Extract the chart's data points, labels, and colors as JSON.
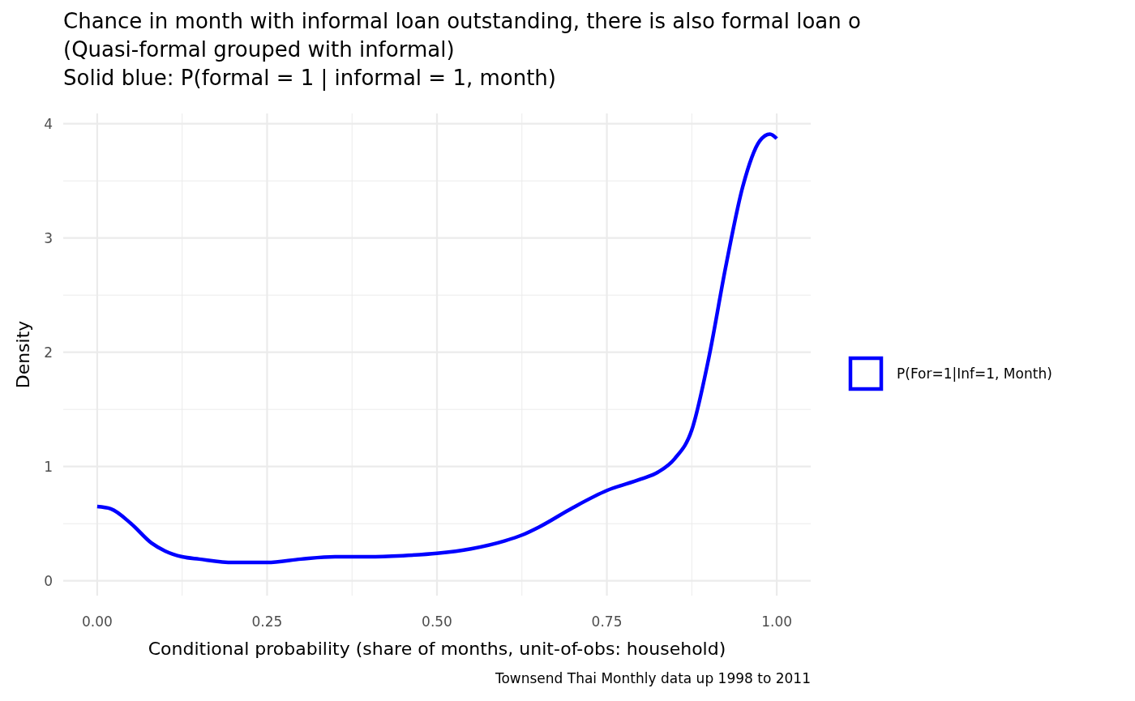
{
  "chart_data": {
    "type": "line",
    "title": "Chance in month with informal loan outstanding, there is also formal loan o",
    "subtitle": "(Quasi-formal grouped with informal)\nSolid blue: P(formal = 1 | informal = 1, month)",
    "xlabel": "Conditional probability (share of months, unit-of-obs: household)",
    "ylabel": "Density",
    "annotations": [
      "Townsend Thai Monthly data up 1998 to 2011"
    ],
    "series": [
      {
        "name": "P(For=1|Inf=1, Month)",
        "color": "#0000ff",
        "x": [
          0,
          0.02,
          0.05,
          0.08,
          0.1,
          0.125,
          0.15,
          0.2,
          0.25,
          0.3,
          0.35,
          0.4,
          0.45,
          0.5,
          0.55,
          0.6,
          0.625,
          0.65,
          0.7,
          0.75,
          0.8,
          0.825,
          0.85,
          0.875,
          0.9,
          0.925,
          0.95,
          0.975,
          0.99,
          1
        ],
        "values": [
          0.65,
          0.63,
          0.5,
          0.33,
          0.26,
          0.21,
          0.19,
          0.16,
          0.16,
          0.19,
          0.21,
          0.21,
          0.22,
          0.24,
          0.28,
          0.35,
          0.4,
          0.47,
          0.64,
          0.79,
          0.89,
          0.95,
          1.07,
          1.32,
          1.95,
          2.75,
          3.45,
          3.85,
          3.91,
          3.87
        ]
      }
    ],
    "xlim": [
      -0.05,
      1.05
    ],
    "ylim": [
      -0.13,
      4.09
    ],
    "xticks": [
      {
        "value": 0,
        "label": "0.00"
      },
      {
        "value": 0.25,
        "label": "0.25"
      },
      {
        "value": 0.5,
        "label": "0.50"
      },
      {
        "value": 0.75,
        "label": "0.75"
      },
      {
        "value": 1,
        "label": "1.00"
      }
    ],
    "yticks": [
      0,
      1,
      2,
      3,
      4
    ],
    "grid": true,
    "legend": "right",
    "marker": "none",
    "line_style": "solid"
  }
}
